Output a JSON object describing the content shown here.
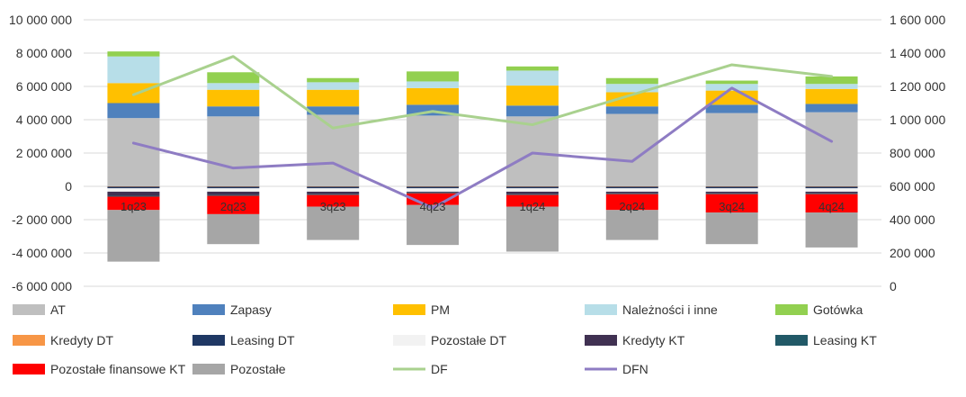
{
  "chart_data": {
    "type": "bar",
    "stacked": true,
    "secondary_axis": true,
    "categories": [
      "1q23",
      "2q23",
      "3q23",
      "4q23",
      "1q24",
      "2q24",
      "3q24",
      "4q24"
    ],
    "y_left": {
      "lim": [
        -6000000,
        10000000
      ],
      "ticks": [
        10000000,
        8000000,
        6000000,
        4000000,
        2000000,
        0,
        -2000000,
        -4000000,
        -6000000
      ],
      "tick_labels": [
        "10 000 000",
        "8 000 000",
        "6 000 000",
        "4 000 000",
        "2 000 000",
        "0",
        "-2 000 000",
        "-4 000 000",
        "-6 000 000"
      ]
    },
    "y_right": {
      "lim": [
        0,
        1600000
      ],
      "ticks": [
        1600000,
        1400000,
        1200000,
        1000000,
        800000,
        600000,
        400000,
        200000,
        0
      ],
      "tick_labels": [
        "1 600 000",
        "1 400 000",
        "1 200 000",
        "1 000 000",
        "800 000",
        "600 000",
        "400 000",
        "200 000",
        "0"
      ]
    },
    "grid": true,
    "legend_position": "bottom",
    "series": [
      {
        "name": "AT",
        "kind": "bar",
        "axis": "left",
        "color": "#bfbfbf",
        "values": [
          4100000,
          4200000,
          4300000,
          4250000,
          4200000,
          4350000,
          4400000,
          4450000
        ]
      },
      {
        "name": "Zapasy",
        "kind": "bar",
        "axis": "left",
        "color": "#4f81bd",
        "values": [
          900000,
          600000,
          500000,
          650000,
          650000,
          450000,
          500000,
          500000
        ]
      },
      {
        "name": "PM",
        "kind": "bar",
        "axis": "left",
        "color": "#ffc000",
        "values": [
          1200000,
          1000000,
          1000000,
          1000000,
          1200000,
          850000,
          850000,
          900000
        ]
      },
      {
        "name": "Należności i inne",
        "kind": "bar",
        "axis": "left",
        "color": "#b7dee8",
        "values": [
          1600000,
          400000,
          450000,
          400000,
          900000,
          500000,
          400000,
          300000
        ]
      },
      {
        "name": "Gotówka",
        "kind": "bar",
        "axis": "left",
        "color": "#92d050",
        "values": [
          300000,
          650000,
          250000,
          600000,
          250000,
          350000,
          200000,
          450000
        ]
      },
      {
        "name": "Kredyty DT",
        "kind": "bar",
        "axis": "left",
        "color": "#f79646",
        "values": [
          -20000,
          -20000,
          -20000,
          -20000,
          -20000,
          -20000,
          -20000,
          -20000
        ]
      },
      {
        "name": "Leasing DT",
        "kind": "bar",
        "axis": "left",
        "color": "#1f3864",
        "values": [
          -100000,
          -100000,
          -100000,
          -100000,
          -100000,
          -100000,
          -100000,
          -100000
        ]
      },
      {
        "name": "Pozostałe DT",
        "kind": "bar",
        "axis": "left",
        "color": "#f2f2f2",
        "values": [
          -200000,
          -200000,
          -200000,
          -200000,
          -200000,
          -200000,
          -200000,
          -200000
        ]
      },
      {
        "name": "Kredyty KT",
        "kind": "bar",
        "axis": "left",
        "color": "#403152",
        "values": [
          -250000,
          -200000,
          -150000,
          -50000,
          -150000,
          -100000,
          -100000,
          -100000
        ]
      },
      {
        "name": "Leasing KT",
        "kind": "bar",
        "axis": "left",
        "color": "#215967",
        "values": [
          -50000,
          -50000,
          -50000,
          -50000,
          -50000,
          -50000,
          -50000,
          -50000
        ]
      },
      {
        "name": "Pozostałe finansowe KT",
        "kind": "bar",
        "axis": "left",
        "color": "#ff0000",
        "values": [
          -800000,
          -1100000,
          -700000,
          -700000,
          -700000,
          -950000,
          -1100000,
          -1100000
        ]
      },
      {
        "name": "Pozostałe",
        "kind": "bar",
        "axis": "left",
        "color": "#a6a6a6",
        "values": [
          -3100000,
          -1800000,
          -2000000,
          -2400000,
          -2700000,
          -1800000,
          -1900000,
          -2100000
        ]
      },
      {
        "name": "DF",
        "kind": "line",
        "axis": "right",
        "color": "#a9d18e",
        "values": [
          1150000,
          1380000,
          950000,
          1050000,
          970000,
          1150000,
          1330000,
          1260000
        ]
      },
      {
        "name": "DFN",
        "kind": "line",
        "axis": "right",
        "color": "#8e7cc3",
        "values": [
          860000,
          710000,
          740000,
          470000,
          800000,
          750000,
          1190000,
          870000
        ]
      }
    ]
  }
}
